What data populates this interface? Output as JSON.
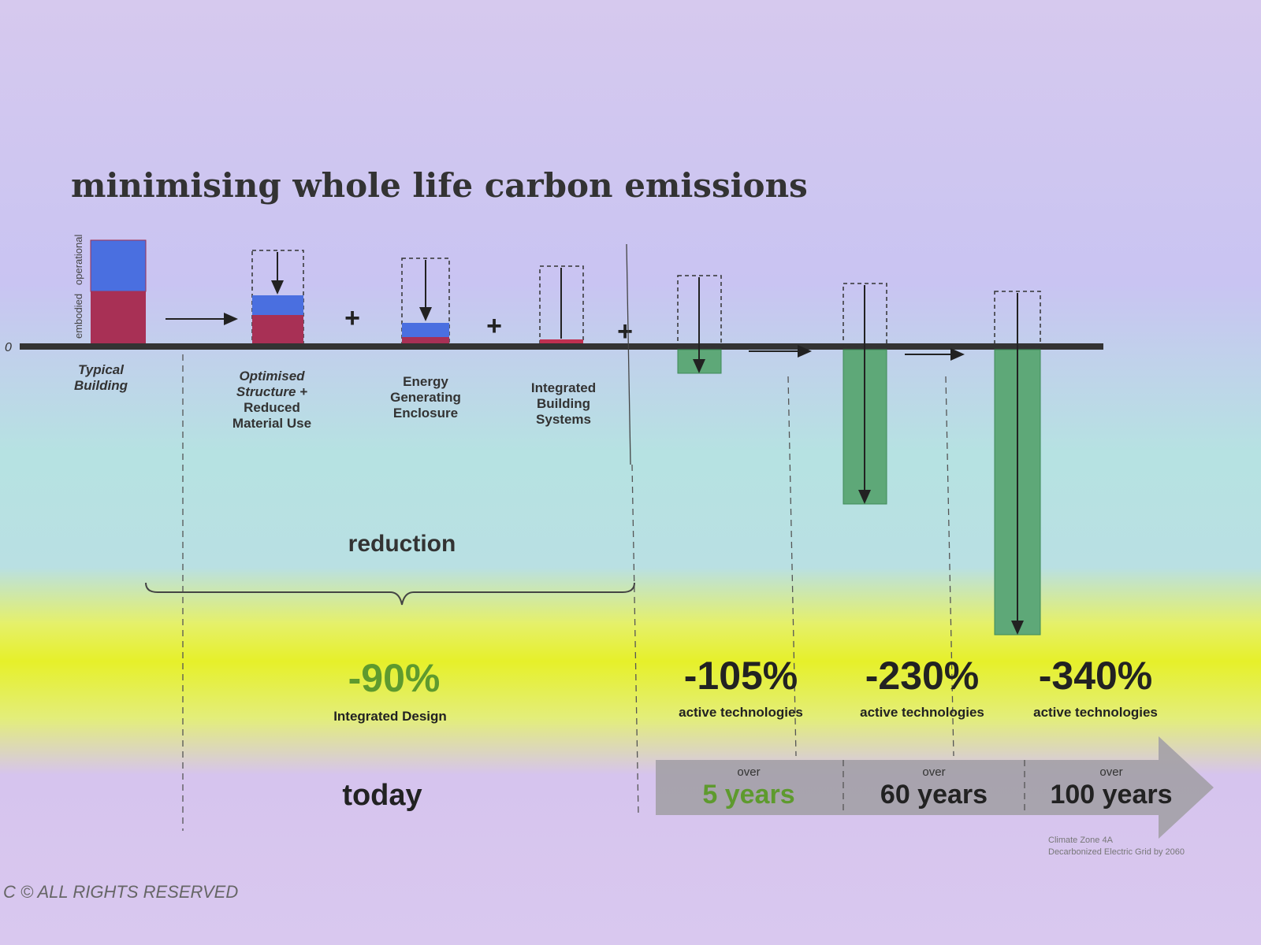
{
  "title": "minimising whole life carbon emissions",
  "axis_labels": {
    "embodied": "embodied",
    "operational": "operational"
  },
  "zero_label": "0",
  "stages": [
    {
      "lines": [
        "Typical",
        "Building"
      ]
    },
    {
      "lines": [
        "Optimised",
        "Structure +",
        "Reduced",
        "Material Use"
      ]
    },
    {
      "lines": [
        "Energy",
        "Generating",
        "Enclosure"
      ]
    },
    {
      "lines": [
        "Integrated",
        "Building",
        "Systems"
      ]
    }
  ],
  "operators": [
    "+",
    "+",
    "+"
  ],
  "reduction": {
    "label": "reduction",
    "percent": "-90%",
    "caption": "Integrated Design",
    "timeframe": "today"
  },
  "scenarios": [
    {
      "percent": "-105%",
      "caption": "active technologies",
      "over": "over",
      "period": "5 years"
    },
    {
      "percent": "-230%",
      "caption": "active technologies",
      "over": "over",
      "period": "60 years"
    },
    {
      "percent": "-340%",
      "caption": "active technologies",
      "over": "over",
      "period": "100 years"
    }
  ],
  "footnote": [
    "Climate Zone 4A",
    "Decarbonized Electric Grid by 2060"
  ],
  "copyright": "C © ALL RIGHTS RESERVED"
}
